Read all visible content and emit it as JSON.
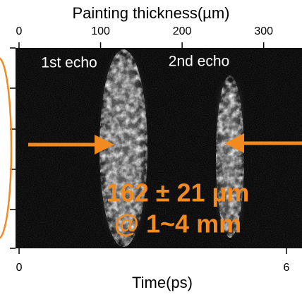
{
  "chart_data": {
    "type": "image",
    "x2label": "Painting thickness(µm)",
    "x2lim": [
      -4.3,
      347
    ],
    "x2ticks": [
      0,
      100,
      200,
      300
    ],
    "xlabel": "Time(ps)",
    "xlim": [
      -0.08,
      6.35
    ],
    "xticks": [
      0,
      6
    ],
    "annotations": [
      "1st echo",
      "2nd echo",
      "162 ± 21 µm",
      "@ 1~4 mm"
    ],
    "annotation_color": "#f28a22"
  }
}
